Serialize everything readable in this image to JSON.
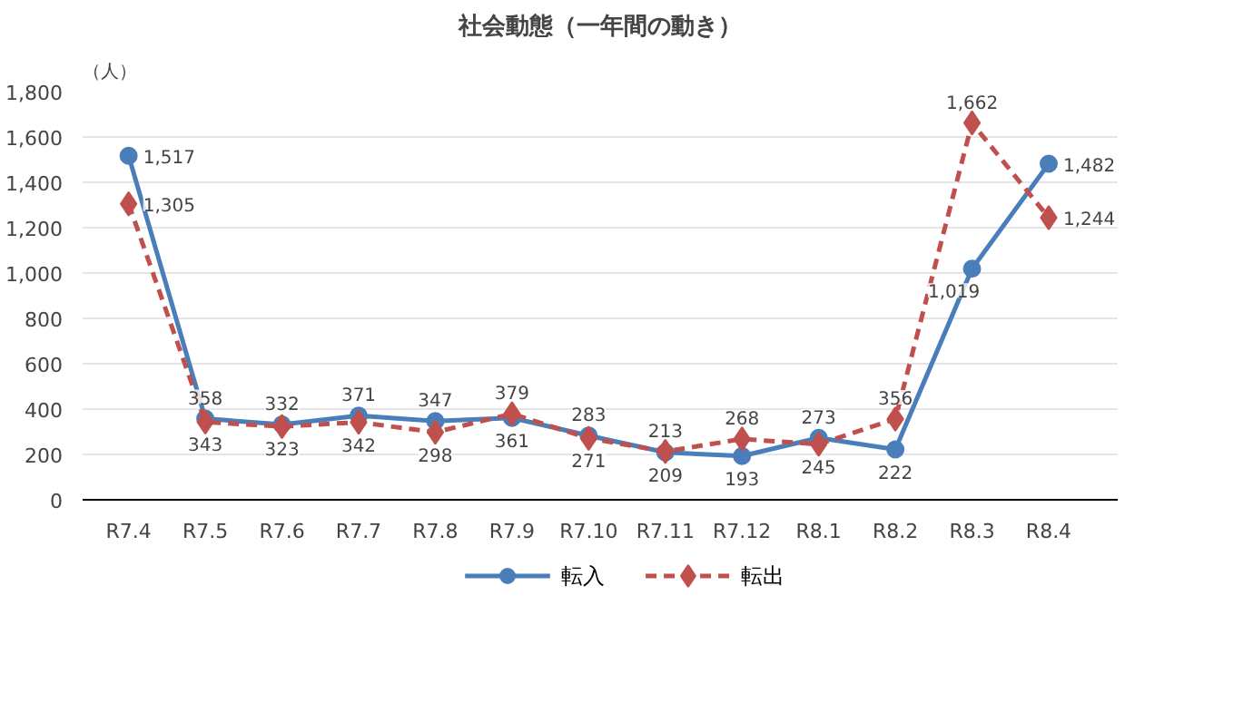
{
  "chart_data": {
    "type": "line",
    "title": "社会動態（一年間の動き）",
    "ylabel": "（人）",
    "categories": [
      "R7.4",
      "R7.5",
      "R7.6",
      "R7.7",
      "R7.8",
      "R7.9",
      "R7.10",
      "R7.11",
      "R7.12",
      "R8.1",
      "R8.2",
      "R8.3",
      "R8.4"
    ],
    "series": [
      {
        "name": "転入",
        "color": "#4a7ebb",
        "marker": "circle",
        "line_style": "solid",
        "values": [
          1517,
          358,
          332,
          371,
          347,
          361,
          283,
          209,
          193,
          273,
          222,
          1019,
          1482
        ],
        "value_labels": [
          "1,517",
          "358",
          "332",
          "371",
          "347",
          "361",
          "283",
          "209",
          "193",
          "273",
          "222",
          "1,019",
          "1,482"
        ]
      },
      {
        "name": "転出",
        "color": "#c0504d",
        "marker": "diamond",
        "line_style": "dashed",
        "values": [
          1305,
          343,
          323,
          342,
          298,
          379,
          271,
          213,
          268,
          245,
          356,
          1662,
          1244
        ],
        "value_labels": [
          "1,305",
          "343",
          "323",
          "342",
          "298",
          "379",
          "271",
          "213",
          "268",
          "245",
          "356",
          "1,662",
          "1,244"
        ]
      }
    ],
    "ylim": [
      0,
      1800
    ],
    "yticks": [
      {
        "value": 0,
        "label": "0"
      },
      {
        "value": 200,
        "label": "200"
      },
      {
        "value": 400,
        "label": "400"
      },
      {
        "value": 600,
        "label": "600"
      },
      {
        "value": 800,
        "label": "800"
      },
      {
        "value": 1000,
        "label": "1,000"
      },
      {
        "value": 1200,
        "label": "1,200"
      },
      {
        "value": 1400,
        "label": "1,400"
      },
      {
        "value": 1600,
        "label": "1,600"
      },
      {
        "value": 1800,
        "label": "1,800"
      }
    ],
    "grid": "y",
    "legend": "bottom"
  }
}
